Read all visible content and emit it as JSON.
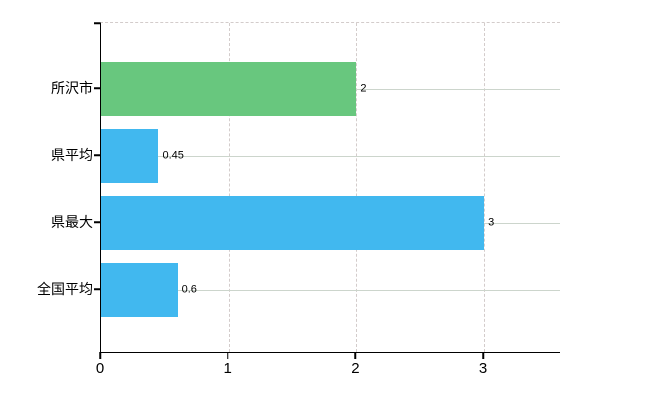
{
  "chart_data": {
    "type": "bar",
    "orientation": "horizontal",
    "title": "",
    "categories": [
      "所沢市",
      "県平均",
      "県最大",
      "全国平均"
    ],
    "values": [
      2,
      0.45,
      3,
      0.6
    ],
    "value_labels": [
      "2",
      "0.45",
      "3",
      "0.6"
    ],
    "bar_colors": [
      "#68c77e",
      "#41b8ef",
      "#41b8ef",
      "#41b8ef"
    ],
    "xticks": [
      0,
      1,
      2,
      3
    ],
    "xtick_labels": [
      "0",
      "1",
      "2",
      "3"
    ],
    "xlim": [
      0,
      3.6
    ],
    "xlabel": "",
    "ylabel": "",
    "grid": true,
    "legend_position": "none"
  },
  "colors": {
    "axis": "#000000",
    "grid_solid": "#ccd5cc",
    "grid_dashed": "#d3cccb",
    "background": "#ffffff",
    "label_text": "#000000"
  }
}
